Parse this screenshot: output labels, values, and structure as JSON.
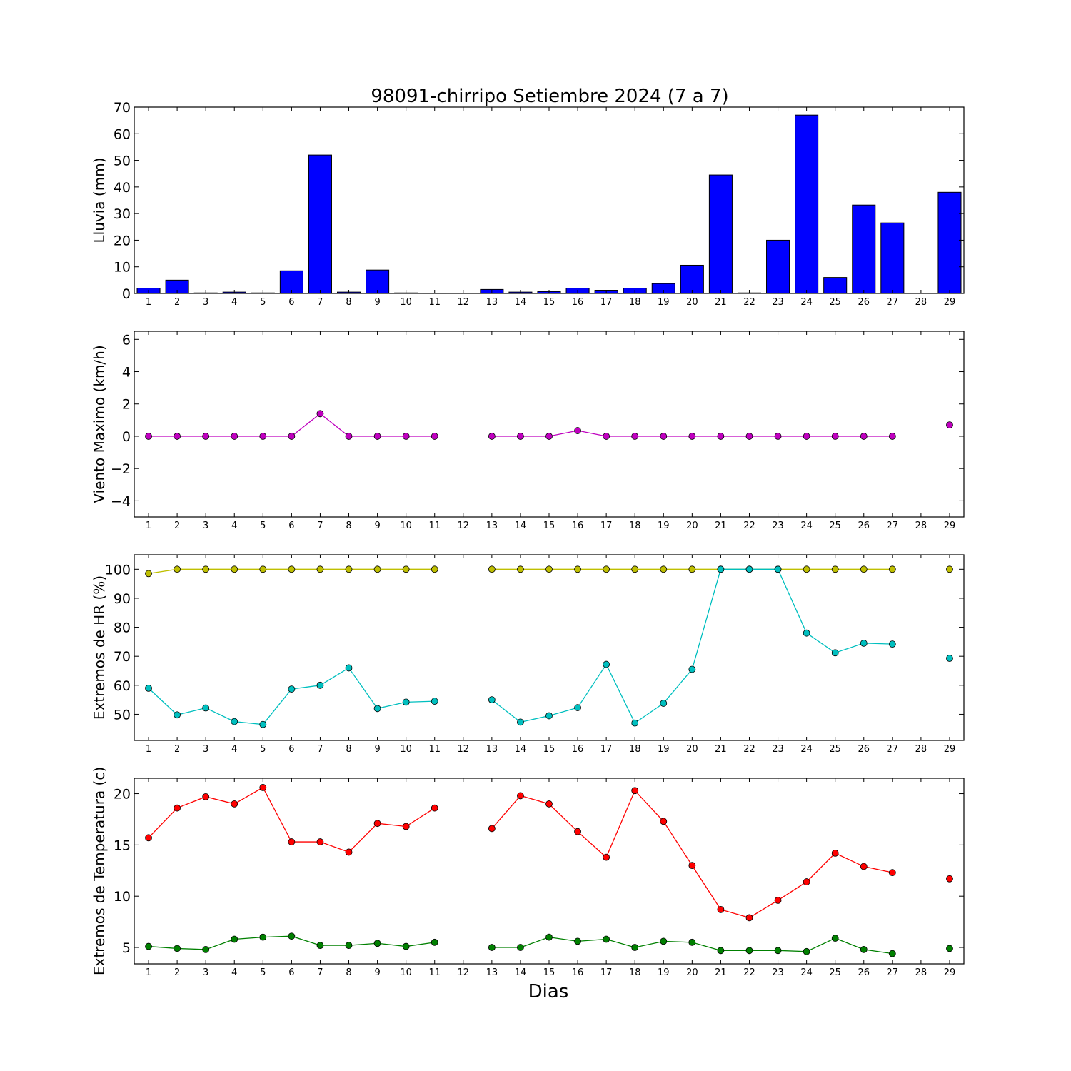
{
  "figure": {
    "title": "98091-chirripo Setiembre 2024  (7 a 7)",
    "xlabel": "Dias"
  },
  "chart_data": [
    {
      "type": "bar",
      "ylabel": "Lluvia (mm)",
      "ylim": [
        0,
        70
      ],
      "yticks": [
        0,
        10,
        20,
        30,
        40,
        50,
        60,
        70
      ],
      "categories": [
        1,
        2,
        3,
        4,
        5,
        6,
        7,
        8,
        9,
        10,
        11,
        12,
        13,
        14,
        15,
        16,
        17,
        18,
        19,
        20,
        21,
        22,
        23,
        24,
        25,
        26,
        27,
        28,
        29
      ],
      "series": [
        {
          "color": "#0000ff",
          "values": [
            2.0,
            5.0,
            0.2,
            0.5,
            0.2,
            8.5,
            52.0,
            0.5,
            8.8,
            0.2,
            0.0,
            null,
            1.5,
            0.5,
            0.7,
            2.0,
            1.2,
            2.0,
            3.7,
            10.6,
            44.5,
            0.2,
            20.0,
            67.0,
            6.0,
            33.2,
            26.5,
            null,
            38.0
          ]
        }
      ]
    },
    {
      "type": "line",
      "ylabel": "Viento Maximo (km/h)",
      "ylim": [
        -5,
        6.5
      ],
      "yticks": [
        -4,
        -2,
        0,
        2,
        4,
        6
      ],
      "categories": [
        1,
        2,
        3,
        4,
        5,
        6,
        7,
        8,
        9,
        10,
        11,
        12,
        13,
        14,
        15,
        16,
        17,
        18,
        19,
        20,
        21,
        22,
        23,
        24,
        25,
        26,
        27,
        28,
        29
      ],
      "series": [
        {
          "color": "#bf00bf",
          "values": [
            0,
            0,
            0,
            0,
            0,
            0,
            1.4,
            0,
            0,
            0,
            0,
            null,
            0,
            0,
            0,
            0.35,
            0,
            0,
            0,
            0,
            0,
            0,
            0,
            0,
            0,
            0,
            0,
            null,
            0.7
          ]
        }
      ]
    },
    {
      "type": "line",
      "ylabel": "Extremos de HR (%)",
      "ylim": [
        41,
        105
      ],
      "yticks": [
        50,
        60,
        70,
        80,
        90,
        100
      ],
      "categories": [
        1,
        2,
        3,
        4,
        5,
        6,
        7,
        8,
        9,
        10,
        11,
        12,
        13,
        14,
        15,
        16,
        17,
        18,
        19,
        20,
        21,
        22,
        23,
        24,
        25,
        26,
        27,
        28,
        29
      ],
      "series": [
        {
          "color": "#bfbf00",
          "values": [
            98.5,
            100,
            100,
            100,
            100,
            100,
            100,
            100,
            100,
            100,
            100,
            null,
            100,
            100,
            100,
            100,
            100,
            100,
            100,
            100,
            100,
            100,
            100,
            100,
            100,
            100,
            100,
            null,
            100
          ]
        },
        {
          "color": "#00bfbf",
          "values": [
            59,
            49.8,
            52.2,
            47.5,
            46.5,
            58.7,
            60,
            66,
            52,
            54.2,
            54.5,
            null,
            55,
            47.3,
            49.5,
            52.3,
            67.2,
            47,
            53.8,
            65.5,
            100,
            100,
            100,
            78,
            71.2,
            74.5,
            74.2,
            null,
            69.3
          ]
        }
      ]
    },
    {
      "type": "line",
      "ylabel": "Extremos de Temperatura (c)",
      "ylim": [
        3.4,
        21.5
      ],
      "yticks": [
        5,
        10,
        15,
        20
      ],
      "categories": [
        1,
        2,
        3,
        4,
        5,
        6,
        7,
        8,
        9,
        10,
        11,
        12,
        13,
        14,
        15,
        16,
        17,
        18,
        19,
        20,
        21,
        22,
        23,
        24,
        25,
        26,
        27,
        28,
        29
      ],
      "series": [
        {
          "color": "#ff0000",
          "values": [
            15.7,
            18.6,
            19.7,
            19.0,
            20.6,
            15.3,
            15.3,
            14.3,
            17.1,
            16.8,
            18.6,
            null,
            16.6,
            19.8,
            19.0,
            16.3,
            13.8,
            20.3,
            17.3,
            13.0,
            8.7,
            7.9,
            9.6,
            11.4,
            14.2,
            12.9,
            12.3,
            null,
            11.7
          ]
        },
        {
          "color": "#008000",
          "values": [
            5.1,
            4.9,
            4.8,
            5.8,
            6.0,
            6.1,
            5.2,
            5.2,
            5.4,
            5.1,
            5.5,
            null,
            5.0,
            5.0,
            6.0,
            5.6,
            5.8,
            5.0,
            5.6,
            5.5,
            4.7,
            4.7,
            4.7,
            4.6,
            5.9,
            4.8,
            4.4,
            null,
            4.9
          ]
        }
      ]
    }
  ]
}
